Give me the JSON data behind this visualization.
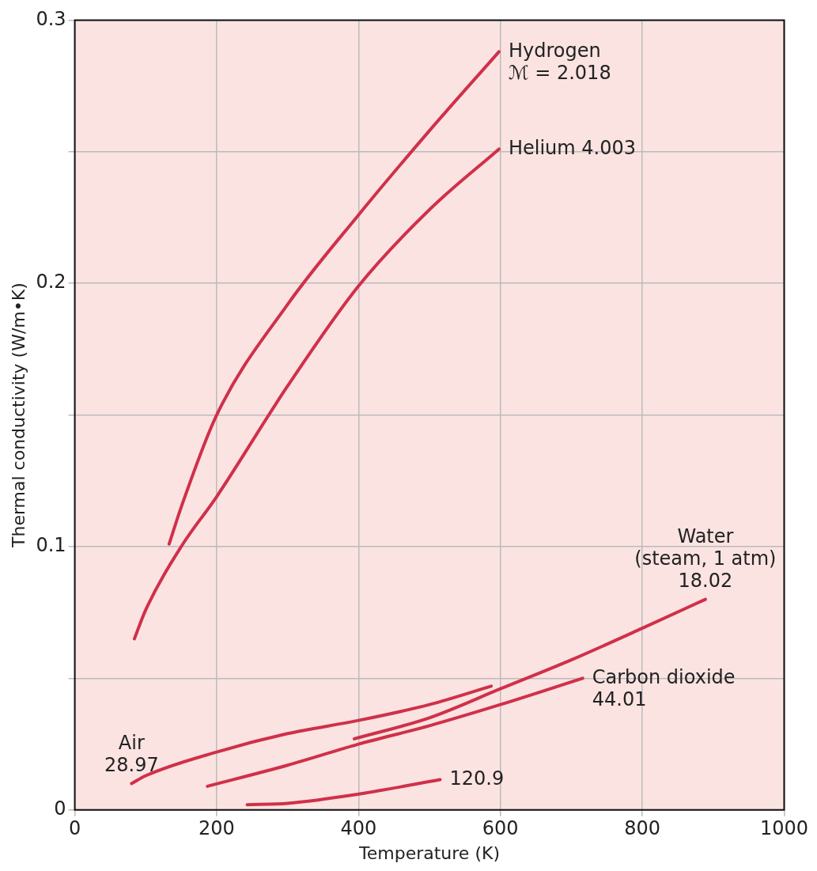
{
  "chart_data": {
    "type": "line",
    "xlabel": "Temperature (K)",
    "ylabel": "Thermal conductivity (W/m•K)",
    "xlim": [
      0,
      1000
    ],
    "xticks": [
      0,
      200,
      400,
      600,
      800,
      1000
    ],
    "ylim": [
      0,
      0.3
    ],
    "yticks": [
      0,
      {
        "value": 0.05,
        "label": null
      },
      0.1,
      {
        "value": 0.15,
        "label": null
      },
      0.2,
      {
        "value": 0.25,
        "label": null
      },
      0.3
    ],
    "grid": true,
    "legend": false,
    "marker": "none",
    "line_style": "solid",
    "series": [
      {
        "color": "#d0304a",
        "x": [
          133,
          150,
          200,
          300,
          400,
          500,
          598
        ],
        "values": [
          0.101,
          0.115,
          0.15,
          0.192,
          0.226,
          0.258,
          0.288
        ]
      },
      {
        "color": "#d0304a",
        "x": [
          84,
          100,
          150,
          200,
          300,
          400,
          500,
          598
        ],
        "values": [
          0.065,
          0.076,
          0.1,
          0.119,
          0.161,
          0.199,
          0.228,
          0.251
        ]
      },
      {
        "color": "#d0304a",
        "x": [
          394,
          500,
          600,
          700,
          800,
          889
        ],
        "values": [
          0.027,
          0.035,
          0.046,
          0.057,
          0.069,
          0.08
        ]
      },
      {
        "color": "#d0304a",
        "x": [
          80,
          100,
          200,
          300,
          400,
          500,
          587
        ],
        "values": [
          0.01,
          0.013,
          0.022,
          0.029,
          0.034,
          0.04,
          0.047
        ]
      },
      {
        "color": "#d0304a",
        "x": [
          187,
          300,
          400,
          500,
          600,
          716
        ],
        "values": [
          0.009,
          0.017,
          0.025,
          0.032,
          0.04,
          0.05
        ]
      },
      {
        "color": "#d0304a",
        "x": [
          243,
          300,
          400,
          515
        ],
        "values": [
          0.002,
          0.0025,
          0.006,
          0.0115
        ]
      }
    ],
    "annotations": [
      {
        "text": "Hydrogen\nℳ = 2.018",
        "x": 598,
        "y": 0.288
      },
      {
        "text": "Helium 4.003",
        "x": 598,
        "y": 0.251
      },
      {
        "text": "Water\n(steam, 1 atm)\n18.02",
        "x": 889,
        "y": 0.08
      },
      {
        "text": "Carbon dioxide\n44.01",
        "x": 716,
        "y": 0.05
      },
      {
        "text": "Air\n28.97",
        "x": 80,
        "y": 0.01
      },
      {
        "text": "120.9",
        "x": 515,
        "y": 0.0115
      }
    ]
  }
}
